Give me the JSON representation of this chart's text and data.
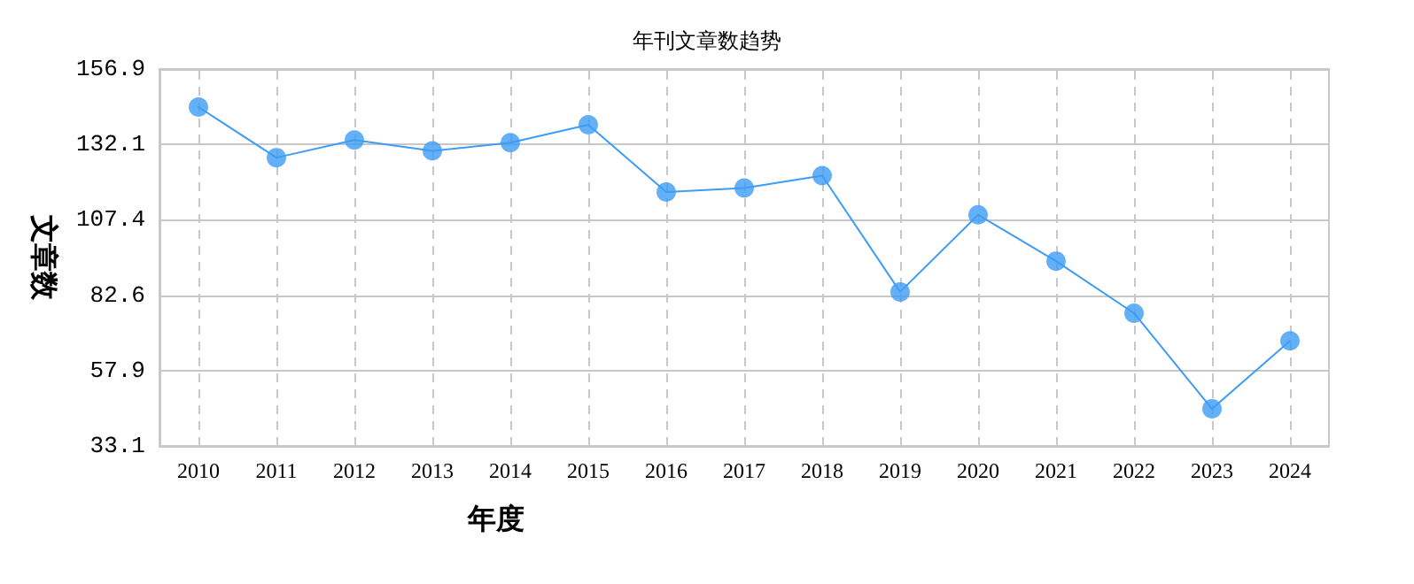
{
  "chart_data": {
    "type": "line",
    "title": "年刊文章数趋势",
    "xlabel": "年度",
    "ylabel": "文章数",
    "categories": [
      "2010",
      "2011",
      "2012",
      "2013",
      "2014",
      "2015",
      "2016",
      "2017",
      "2018",
      "2019",
      "2020",
      "2021",
      "2022",
      "2023",
      "2024"
    ],
    "series": [
      {
        "color": "#3d9cf5",
        "values": [
          144.4,
          127.8,
          133.6,
          130.0,
          132.7,
          138.6,
          116.5,
          117.8,
          121.9,
          83.7,
          109.0,
          93.8,
          76.7,
          45.3,
          67.6
        ]
      }
    ],
    "ylim": [
      33.1,
      156.9
    ],
    "yticks": [
      33.1,
      57.9,
      82.6,
      107.4,
      132.1,
      156.9
    ],
    "grid": true,
    "marker": "circle",
    "line_style": "solid"
  }
}
